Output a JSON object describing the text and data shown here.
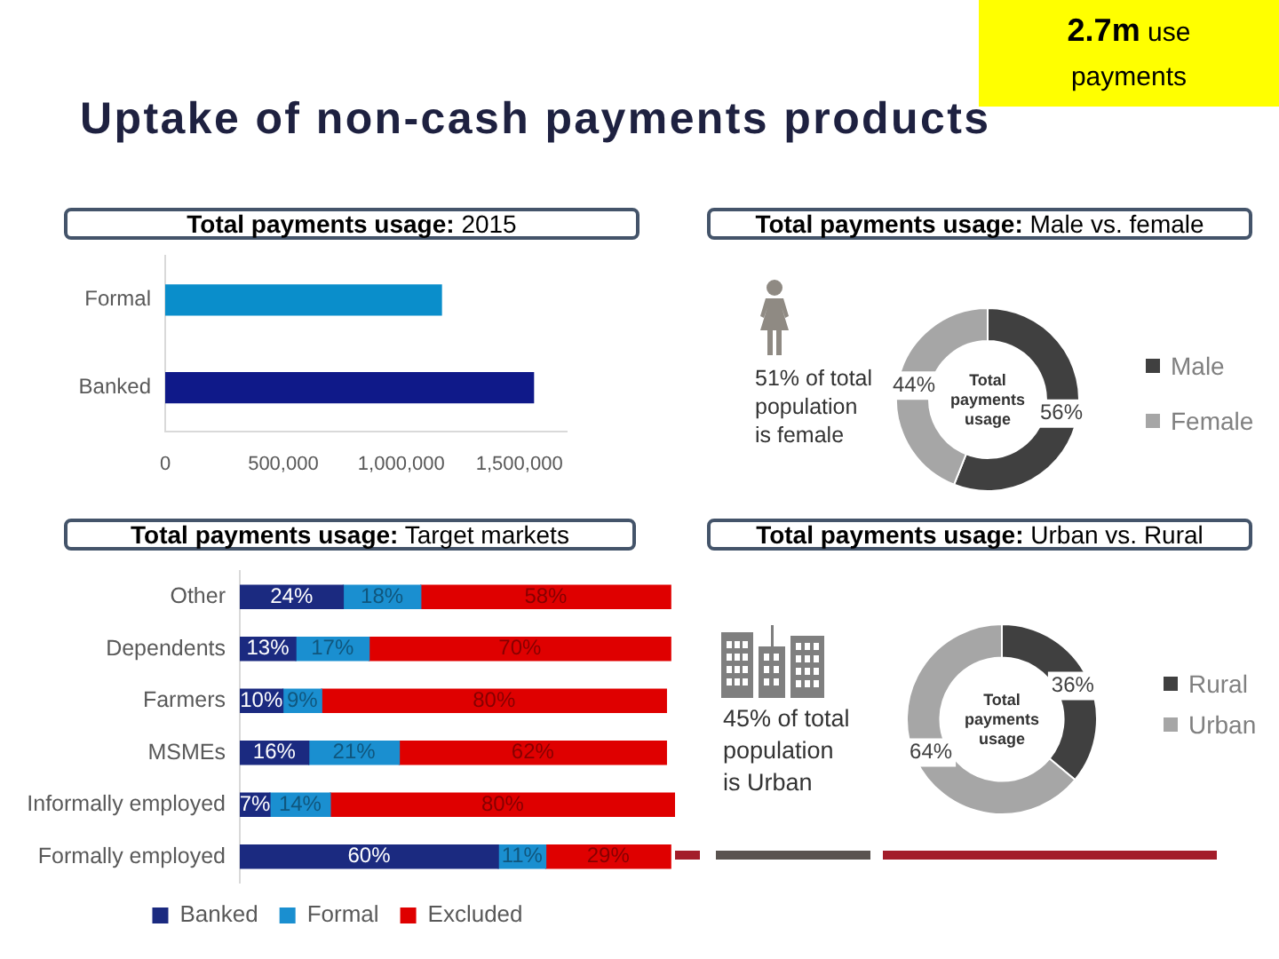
{
  "chart_data": [
    {
      "type": "other",
      "title": "Uptake of non-cash payments products",
      "annotations": [
        "2.7m use payments"
      ]
    },
    {
      "type": "bar",
      "orientation": "horizontal",
      "title": "Total payments usage: 2015",
      "categories": [
        "Formal",
        "Banked"
      ],
      "values": [
        1170000,
        1560000
      ],
      "colors": [
        "#0a8ecb",
        "#0f1989"
      ],
      "xlim": [
        0,
        1700000
      ],
      "xticks": [
        0,
        {
          "value": 500000,
          "label": "500,000"
        },
        {
          "value": 1000000,
          "label": "1,000,000"
        },
        {
          "value": 1500000,
          "label": "1,500,000"
        }
      ]
    },
    {
      "type": "donut",
      "title": "Total payments usage: Male vs. female",
      "categories": [
        "Male",
        "Female"
      ],
      "values": [
        56,
        44
      ],
      "colors": [
        "#404040",
        "#a6a6a6"
      ],
      "value_labels": [
        "56%",
        "44%"
      ],
      "legend": "right",
      "annotations": [
        "Total payments usage",
        "51% of total population is female"
      ]
    },
    {
      "type": "bar",
      "orientation": "horizontal",
      "stacked": true,
      "title": "Total payments usage: Target markets",
      "categories": [
        "Other",
        "Dependents",
        "Farmers",
        "MSMEs",
        "Informally employed",
        "Formally employed"
      ],
      "series": [
        {
          "name": "Banked",
          "color": "#1b2a80",
          "values": [
            24,
            13,
            10,
            16,
            7,
            60
          ],
          "value_labels": [
            "24%",
            "13%",
            "10%",
            "16%",
            "7%",
            "60%"
          ]
        },
        {
          "name": "Formal",
          "color": "#1a8fd0",
          "values": [
            18,
            17,
            9,
            21,
            14,
            11
          ],
          "value_labels": [
            "18%",
            "17%",
            "9%",
            "21%",
            "14%",
            "11%"
          ]
        },
        {
          "name": "Excluded",
          "color": "#df0000",
          "values": [
            58,
            70,
            80,
            62,
            80,
            29
          ],
          "value_labels": [
            "58%",
            "70%",
            "80%",
            "62%",
            "80%",
            "29%"
          ]
        }
      ],
      "xlim": [
        0,
        101
      ],
      "tick_labels": "y",
      "legend": "bottom"
    },
    {
      "type": "donut",
      "title": "Total payments usage: Urban vs. Rural",
      "categories": [
        "Rural",
        "Urban"
      ],
      "values": [
        36,
        64
      ],
      "colors": [
        "#404040",
        "#a6a6a6"
      ],
      "value_labels": [
        "36%",
        "64%"
      ],
      "legend": "right",
      "annotations": [
        "Total payments usage",
        "45% of total population is Urban"
      ]
    }
  ]
}
